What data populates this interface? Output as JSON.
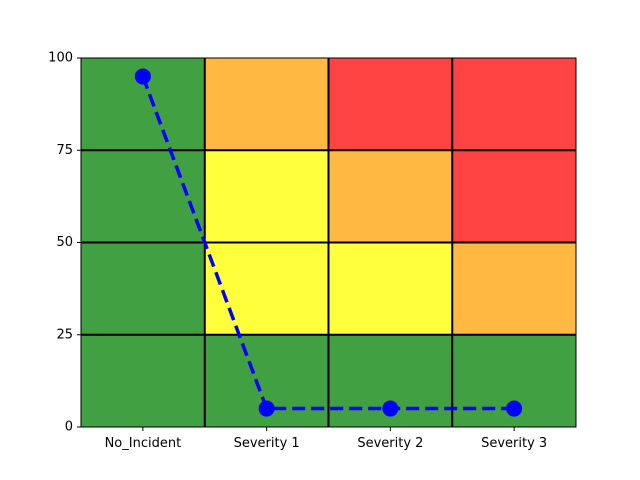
{
  "chart_data": {
    "type": "line",
    "categories": [
      "No_Incident",
      "Severity 1",
      "Severity 2",
      "Severity 3"
    ],
    "series": [
      {
        "values": [
          95,
          5,
          5,
          5
        ],
        "color": "#0000ff",
        "style": "dashed",
        "marker": "circle"
      }
    ],
    "ylim": [
      0,
      100
    ],
    "yticks": [
      0,
      25,
      50,
      75,
      100
    ],
    "grid": true,
    "background_zones": {
      "rows_bottom_to_top": [
        "0-25",
        "25-50",
        "50-75",
        "75-100"
      ],
      "colors": {
        "green": "#41a041",
        "yellow": "#ffff3b",
        "orange": "#ffb842",
        "red": "#ff4242"
      },
      "cells": [
        [
          "green",
          "green",
          "green",
          "green"
        ],
        [
          "green",
          "yellow",
          "yellow",
          "orange"
        ],
        [
          "green",
          "yellow",
          "orange",
          "red"
        ],
        [
          "green",
          "orange",
          "red",
          "red"
        ]
      ]
    }
  }
}
